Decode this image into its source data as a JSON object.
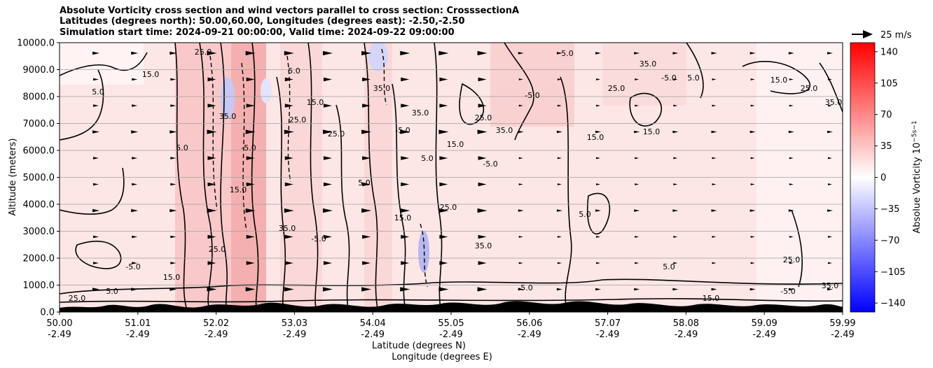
{
  "title": {
    "line1": "Absolute Vorticity cross section and wind vectors parallel to cross section: CrosssectionA",
    "line2": "Latitudes (degrees north): 50.00,60.00, Longitudes (degrees east): -2.50,-2.50",
    "line3": "Simulation start time: 2024-09-21 00:00:00, Valid time: 2024-09-22 09:00:00"
  },
  "chart_data": {
    "type": "heatmap",
    "subtype": "cross-section contour + wind vectors",
    "ylabel": "Altitude (meters)",
    "xlabel_line1": "Latitude (degrees N)",
    "xlabel_line2": "Longitude (degrees E)",
    "ylim": [
      0,
      10000
    ],
    "y_ticks": [
      "0.0",
      "1000.0",
      "2000.0",
      "3000.0",
      "4000.0",
      "5000.0",
      "6000.0",
      "7000.0",
      "8000.0",
      "9000.0",
      "10000.0"
    ],
    "x_ticks_lat": [
      "50.00",
      "51.01",
      "52.02",
      "53.03",
      "54.04",
      "55.05",
      "56.06",
      "57.07",
      "58.08",
      "59.09",
      "59.99"
    ],
    "x_ticks_lon": [
      "-2.49",
      "-2.49",
      "-2.49",
      "-2.49",
      "-2.49",
      "-2.49",
      "-2.49",
      "-2.49",
      "-2.49",
      "-2.49",
      "-2.49"
    ],
    "grid": "horizontal",
    "colorbar": {
      "label": "Absolue Vorticity 10",
      "label_units": "−5s−1",
      "range": [
        -150,
        150
      ],
      "ticks": [
        "140",
        "105",
        "70",
        "35",
        "0",
        "−35",
        "−70",
        "−105",
        "−140"
      ],
      "tick_values": [
        140,
        105,
        70,
        35,
        0,
        -35,
        -70,
        -105,
        -140
      ],
      "colormap": "bwr",
      "low_color": "#0000ff",
      "mid_color": "#ffffff",
      "high_color": "#ff0000"
    },
    "quiver_key": {
      "label": "25 m/s",
      "speed": 25
    },
    "contour_labels": [
      "5.0",
      "15.0",
      "25.0",
      "35.0",
      "-5.0"
    ],
    "surface_color": "#000000"
  }
}
